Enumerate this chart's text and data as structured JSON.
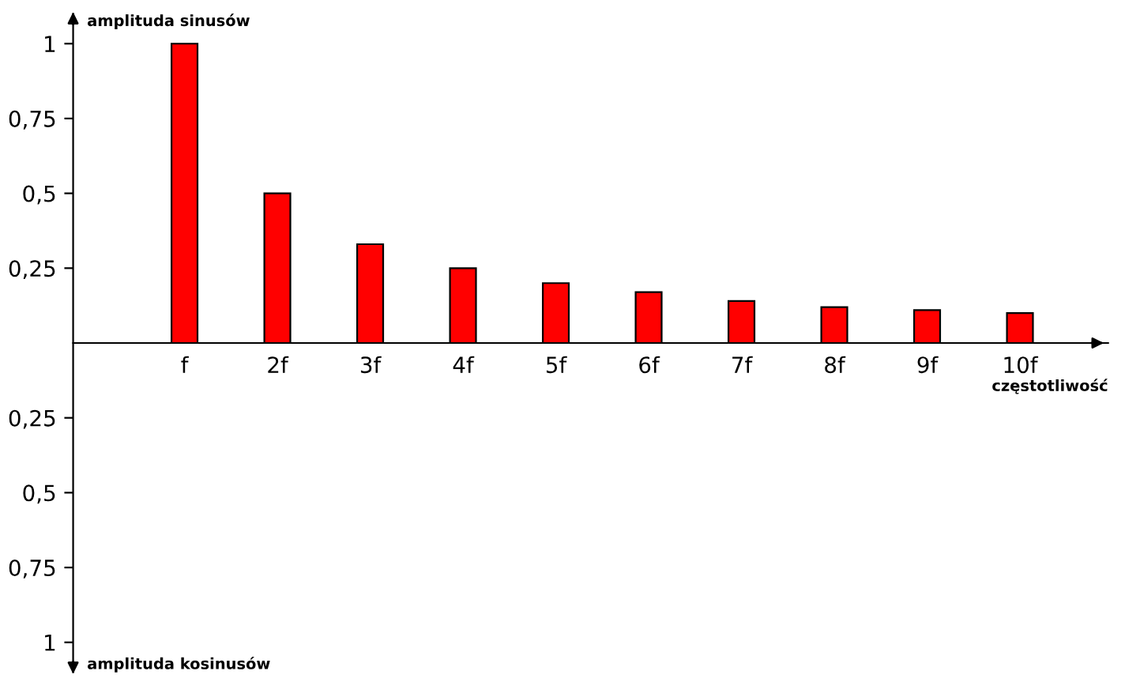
{
  "chart_data": {
    "type": "bar",
    "ylabel": "amplituda sinusów",
    "xlabel": "częstotliwość",
    "annotations": [
      "amplituda kosinusów"
    ],
    "categories": [
      "f",
      "2f",
      "3f",
      "4f",
      "5f",
      "6f",
      "7f",
      "8f",
      "9f",
      "10f"
    ],
    "values": [
      1,
      0.5,
      0.33,
      0.25,
      0.2,
      0.17,
      0.14,
      0.12,
      0.11,
      0.1
    ],
    "color": "#ff0000",
    "ylim": [
      -1.1,
      1.1
    ],
    "yticks": [
      {
        "value": -1,
        "label": "1"
      },
      {
        "value": -0.75,
        "label": "0,75"
      },
      {
        "value": -0.5,
        "label": "0,5"
      },
      {
        "value": -0.25,
        "label": "0,25"
      },
      {
        "value": 0.25,
        "label": "0,25"
      },
      {
        "value": 0.5,
        "label": "0,5"
      },
      {
        "value": 0.75,
        "label": "0,75"
      },
      {
        "value": 1,
        "label": "1"
      }
    ],
    "grid": false,
    "legend": false
  }
}
